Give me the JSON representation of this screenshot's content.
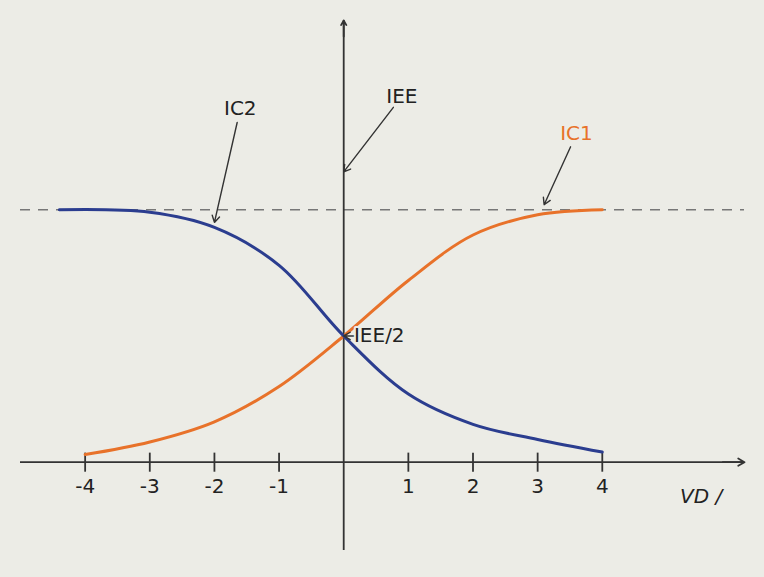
{
  "chart_data": {
    "type": "line",
    "x_label": "VD /",
    "xlim": [
      -5,
      6.2
    ],
    "ylim": [
      -0.35,
      1.75
    ],
    "xticks": [
      -4,
      -3,
      -2,
      -1,
      1,
      2,
      3,
      4
    ],
    "tick_labels": "x",
    "grid": false,
    "series": [
      {
        "name": "IC1",
        "color": "#e8722a",
        "line_style": "solid",
        "x": [
          -4,
          -3,
          -2,
          -1,
          0,
          1,
          2,
          3,
          4
        ],
        "values": [
          0.03,
          0.08,
          0.16,
          0.3,
          0.5,
          0.72,
          0.9,
          0.98,
          1.0
        ]
      },
      {
        "name": "IC2",
        "color": "#2b3d8f",
        "line_style": "solid",
        "x": [
          -4.4,
          -3,
          -2,
          -1,
          0,
          1,
          2,
          3,
          4
        ],
        "values": [
          1.0,
          0.99,
          0.93,
          0.78,
          0.5,
          0.27,
          0.15,
          0.09,
          0.04
        ]
      }
    ],
    "reference_lines": [
      {
        "y": 1,
        "line_style": "dashed",
        "color": "#777777"
      }
    ],
    "annotations": [
      {
        "text": "IC2",
        "x": -1.6,
        "y": 1.4,
        "point": [
          -2,
          0.95
        ],
        "color": "#222222"
      },
      {
        "text": "IEE",
        "x": 0.9,
        "y": 1.45,
        "point": [
          0,
          1.15
        ],
        "color": "#222222"
      },
      {
        "text": "IC1",
        "x": 3.6,
        "y": 1.3,
        "point": [
          3.1,
          1.02
        ],
        "color": "#e8722a"
      },
      {
        "text": "IEE/2",
        "x": 0.55,
        "y": 0.5,
        "point": [
          0,
          0.5
        ],
        "color": "#222222"
      }
    ]
  }
}
